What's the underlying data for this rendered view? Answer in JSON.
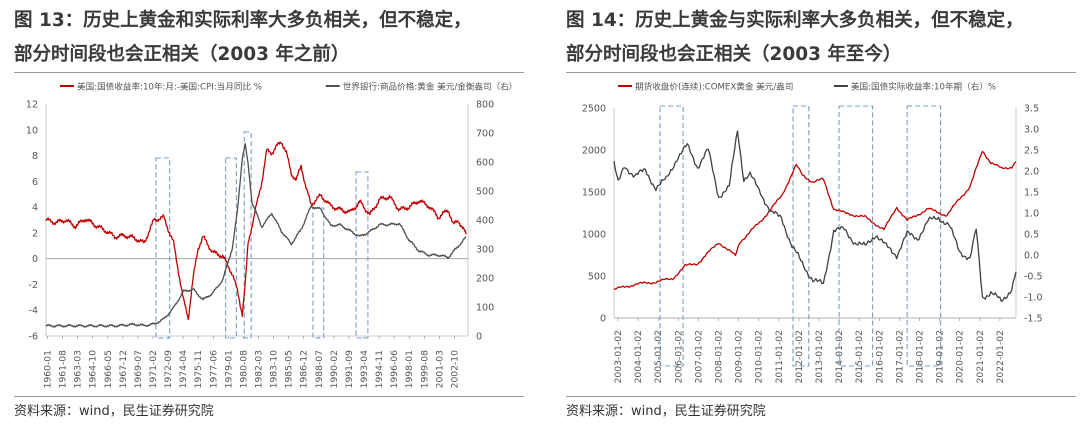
{
  "panels": [
    {
      "title_line1": "图 13：历史上黄金和实际利率大多负相关，但不稳定，",
      "title_line2": "部分时间段也会正相关（2003 年之前）",
      "source": "资料来源：wind，民生证券研究院"
    },
    {
      "title_line1": "图 14：历史上黄金与实际利率大多负相关，但不稳定，",
      "title_line2": "部分时间段也会正相关（2003 年至今）",
      "source": "资料来源：wind，民生证券研究院"
    }
  ],
  "chart_data": [
    {
      "type": "line",
      "title": "",
      "xlabel": "",
      "ylabel": "",
      "legend_position": "top",
      "grid": false,
      "x_tick_labels": [
        "1960-01",
        "1961-08",
        "1963-03",
        "1964-10",
        "1966-05",
        "1967-12",
        "1969-07",
        "1971-02",
        "1972-09",
        "1974-04",
        "1975-11",
        "1977-06",
        "1979-01",
        "1980-08",
        "1982-03",
        "1983-10",
        "1985-05",
        "1986-12",
        "1988-07",
        "1990-02",
        "1991-09",
        "1993-04",
        "1994-11",
        "1996-06",
        "1998-01",
        "1999-08",
        "2001-03",
        "2002-10"
      ],
      "x_range": [
        1960.0,
        2003.0
      ],
      "y_left": {
        "min": -6,
        "max": 12,
        "ticks": [
          -6,
          -4,
          -2,
          0,
          2,
          4,
          6,
          8,
          10,
          12
        ]
      },
      "y_right": {
        "min": 0,
        "max": 800,
        "ticks": [
          0,
          100,
          200,
          300,
          400,
          500,
          600,
          700,
          800
        ]
      },
      "series": [
        {
          "name": "美国:国债收益率:10年:月:-美国:CPI:当月同比 %",
          "axis": "left",
          "color": "#c00000",
          "x": [
            1960,
            1961,
            1962,
            1963,
            1964,
            1965,
            1966,
            1967,
            1968,
            1969,
            1970,
            1971,
            1972,
            1973,
            1973.5,
            1974,
            1974.5,
            1975,
            1975.5,
            1976,
            1977,
            1978,
            1978.5,
            1979,
            1979.5,
            1980,
            1980.3,
            1980.6,
            1981,
            1981.5,
            1982,
            1982.5,
            1983,
            1983.5,
            1984,
            1984.5,
            1985,
            1985.5,
            1986,
            1986.5,
            1987,
            1988,
            1989,
            1990,
            1991,
            1992,
            1993,
            1994,
            1995,
            1996,
            1997,
            1998,
            1999,
            2000,
            2001,
            2001.5,
            2002,
            2002.8
          ],
          "y": [
            3.0,
            2.8,
            3.0,
            2.5,
            3.1,
            2.6,
            2.2,
            1.7,
            1.8,
            1.6,
            1.2,
            3.0,
            3.2,
            1.2,
            -1.0,
            -3.2,
            -4.6,
            -1.5,
            0.8,
            1.7,
            0.5,
            0.2,
            -0.5,
            -1.2,
            -2.5,
            -4.3,
            -2.0,
            1.2,
            2.6,
            4.3,
            6.0,
            8.4,
            8.2,
            8.7,
            9.1,
            8.2,
            6.6,
            6.1,
            7.2,
            5.5,
            4.2,
            4.9,
            4.1,
            3.8,
            3.6,
            4.4,
            3.4,
            4.6,
            4.8,
            3.8,
            4.0,
            4.5,
            4.1,
            3.2,
            3.8,
            2.6,
            3.0,
            1.9
          ]
        },
        {
          "name": "世界银行:商品价格:黄金 美元/金衡盎司（右）",
          "axis": "right",
          "color": "#505050",
          "x": [
            1960,
            1967,
            1969,
            1970,
            1971,
            1972,
            1973,
            1974,
            1975,
            1976,
            1977,
            1978,
            1979,
            1979.5,
            1980.0,
            1980.3,
            1980.6,
            1981,
            1982,
            1983,
            1984,
            1985,
            1986,
            1987,
            1988,
            1989,
            1990,
            1991,
            1992,
            1993,
            1994,
            1995,
            1996,
            1997,
            1998,
            1999,
            2000,
            2001,
            2002,
            2002.8
          ],
          "y": [
            35,
            35,
            40,
            36,
            41,
            58,
            97,
            154,
            161,
            125,
            148,
            193,
            306,
            430,
            615,
            660,
            590,
            460,
            376,
            424,
            361,
            317,
            368,
            447,
            437,
            381,
            383,
            362,
            343,
            360,
            384,
            384,
            388,
            331,
            294,
            279,
            279,
            271,
            310,
            340
          ]
        }
      ],
      "highlight_boxes": [
        [
          1971.2,
          1972.6
        ],
        [
          1978.3,
          1979.4
        ],
        [
          1980.2,
          1980.9
        ],
        [
          1987.2,
          1988.3
        ],
        [
          1991.6,
          1992.8
        ]
      ]
    },
    {
      "type": "line",
      "title": "",
      "xlabel": "",
      "ylabel": "",
      "legend_position": "top",
      "grid": false,
      "x_tick_labels": [
        "2003-01-02",
        "2004-01-02",
        "2005-01-02",
        "2006-01-02",
        "2007-01-02",
        "2008-01-02",
        "2009-01-02",
        "2010-01-02",
        "2011-01-02",
        "2012-01-02",
        "2013-01-02",
        "2014-01-02",
        "2015-01-02",
        "2016-01-02",
        "2017-01-02",
        "2018-01-02",
        "2019-01-02",
        "2020-01-02",
        "2021-01-02",
        "2022-01-02"
      ],
      "x_range": [
        2003.0,
        2022.2
      ],
      "y_left": {
        "min": 0,
        "max": 2500,
        "ticks": [
          0,
          500,
          1000,
          1500,
          2000,
          2500
        ]
      },
      "y_right": {
        "min": -1.5,
        "max": 3.5,
        "ticks": [
          -1.5,
          -1.0,
          -0.5,
          0,
          0.5,
          1.0,
          1.5,
          2.0,
          2.5,
          3.0,
          3.5
        ]
      },
      "series": [
        {
          "name": "期货收盘价(连续):COMEX黄金 美元/盎司",
          "axis": "left",
          "color": "#c00000",
          "x": [
            2003,
            2004,
            2005,
            2005.8,
            2006.4,
            2007,
            2008,
            2008.8,
            2009,
            2010,
            2011,
            2011.7,
            2012,
            2012.5,
            2013,
            2013.5,
            2014,
            2015,
            2015.9,
            2016.5,
            2017,
            2018,
            2018.9,
            2019.5,
            2020,
            2020.6,
            2021,
            2021.5,
            2022,
            2022.2
          ],
          "y": [
            340,
            400,
            430,
            470,
            620,
            650,
            900,
            740,
            900,
            1150,
            1450,
            1820,
            1700,
            1620,
            1650,
            1300,
            1250,
            1200,
            1050,
            1320,
            1160,
            1300,
            1220,
            1420,
            1560,
            1990,
            1850,
            1780,
            1800,
            1860
          ]
        },
        {
          "name": "美国:国债实际收益率:10年期（右）%",
          "axis": "right",
          "color": "#404040",
          "x": [
            2003,
            2003.2,
            2003.5,
            2004,
            2004.5,
            2005,
            2005.5,
            2006,
            2006.5,
            2007,
            2007.5,
            2008,
            2008.5,
            2008.9,
            2009.2,
            2009.5,
            2010,
            2010.5,
            2011,
            2011.5,
            2012,
            2012.5,
            2013,
            2013.5,
            2014,
            2014.5,
            2015,
            2015.5,
            2016,
            2016.5,
            2017,
            2017.5,
            2018,
            2018.5,
            2019,
            2019.5,
            2020,
            2020.3,
            2020.6,
            2021,
            2021.5,
            2022,
            2022.2
          ],
          "y": [
            2.2,
            1.7,
            2.1,
            1.9,
            2.0,
            1.6,
            1.8,
            2.3,
            2.6,
            2.1,
            2.5,
            1.4,
            1.6,
            3.0,
            1.8,
            1.9,
            1.5,
            1.0,
            0.9,
            0.2,
            -0.2,
            -0.6,
            -0.7,
            0.6,
            0.6,
            0.3,
            0.2,
            0.5,
            0.2,
            0.0,
            0.5,
            0.4,
            0.8,
            0.9,
            0.7,
            0.1,
            -0.1,
            0.6,
            -1.0,
            -0.9,
            -1.1,
            -0.8,
            -0.4
          ]
        }
      ],
      "highlight_boxes": [
        [
          2005.2,
          2006.3
        ],
        [
          2011.55,
          2012.3
        ],
        [
          2013.75,
          2015.35
        ],
        [
          2017.0,
          2018.6
        ]
      ]
    }
  ]
}
